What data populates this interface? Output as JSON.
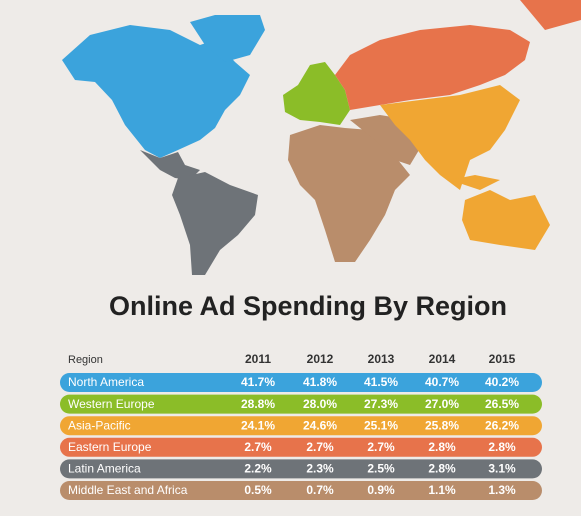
{
  "title": "Online Ad Spending By Region",
  "table": {
    "header": [
      "Region",
      "2011",
      "2012",
      "2013",
      "2014",
      "2015"
    ],
    "rows": [
      [
        "North America",
        "41.7%",
        "41.8%",
        "41.5%",
        "40.7%",
        "40.2%"
      ],
      [
        "Western Europe",
        "28.8%",
        "28.0%",
        "27.3%",
        "27.0%",
        "26.5%"
      ],
      [
        "Asia-Pacific",
        "24.1%",
        "24.6%",
        "25.1%",
        "25.8%",
        "26.2%"
      ],
      [
        "Eastern Europe",
        "2.7%",
        "2.7%",
        "2.7%",
        "2.8%",
        "2.8%"
      ],
      [
        "Latin America",
        "2.2%",
        "2.3%",
        "2.5%",
        "2.8%",
        "3.1%"
      ],
      [
        "Middle East and Africa",
        "0.5%",
        "0.7%",
        "0.9%",
        "1.1%",
        "1.3%"
      ]
    ],
    "row_colors": [
      "#3ba3dc",
      "#8bbd28",
      "#f0a633",
      "#e7734b",
      "#6e7378",
      "#b98d6b"
    ]
  }
}
